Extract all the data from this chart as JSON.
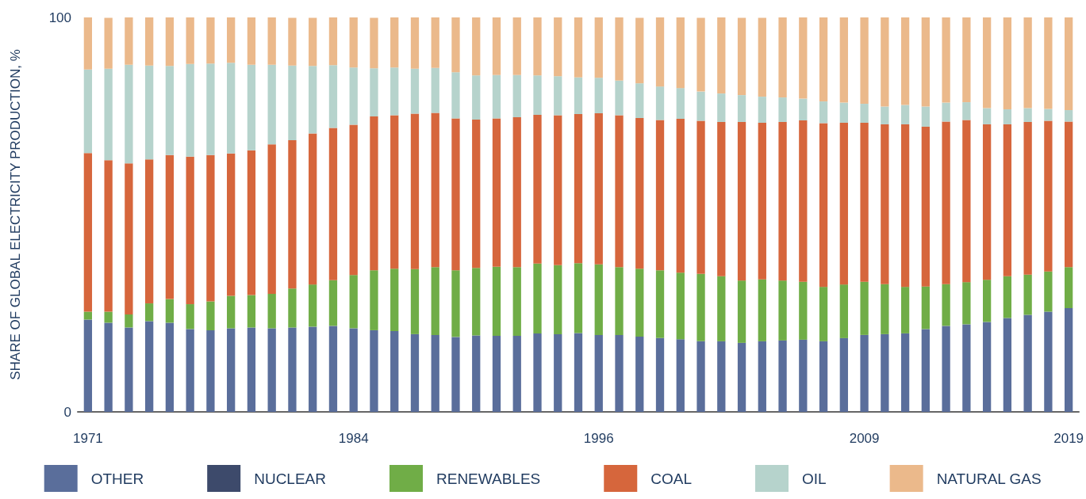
{
  "chart_data": {
    "type": "bar",
    "stacked": true,
    "ylabel": "SHARE OF GLOBAL ELECTRICITY PRODUCTION, %",
    "categories": [
      "1971",
      null,
      null,
      null,
      null,
      null,
      null,
      null,
      null,
      null,
      null,
      null,
      null,
      "1984",
      null,
      null,
      null,
      null,
      null,
      null,
      null,
      null,
      null,
      null,
      null,
      "1996",
      null,
      null,
      null,
      null,
      null,
      null,
      null,
      null,
      null,
      null,
      null,
      null,
      "2009",
      null,
      null,
      null,
      null,
      null,
      null,
      null,
      null,
      null,
      "2019"
    ],
    "ylim": [
      0,
      100
    ],
    "yticks": [
      0,
      100
    ],
    "grid": false,
    "legend": "bottom",
    "series": [
      {
        "name": "OTHER",
        "color": "#5a6e9b",
        "values": [
          23.4,
          22.6,
          21.4,
          23.0,
          22.6,
          21.0,
          20.7,
          21.2,
          21.4,
          21.2,
          21.4,
          21.6,
          21.8,
          21.2,
          20.7,
          20.5,
          19.7,
          19.5,
          19.0,
          19.4,
          19.3,
          19.3,
          19.9,
          19.7,
          20.0,
          19.5,
          19.5,
          19.1,
          18.7,
          18.4,
          17.9,
          17.9,
          17.5,
          17.9,
          18.1,
          18.3,
          17.9,
          18.7,
          19.5,
          19.7,
          19.9,
          21.0,
          21.8,
          22.2,
          22.8,
          23.8,
          24.6,
          25.4,
          26.3
        ]
      },
      {
        "name": "NUCLEAR",
        "color": "#3d4a6b",
        "values": [
          null,
          null,
          null,
          null,
          null,
          null,
          null,
          null,
          null,
          null,
          null,
          null,
          null,
          null,
          null,
          null,
          null,
          null,
          null,
          null,
          null,
          null,
          null,
          null,
          null,
          null,
          null,
          null,
          null,
          null,
          null,
          null,
          null,
          null,
          null,
          null,
          null,
          null,
          null,
          null,
          null,
          null,
          null,
          null,
          null,
          null,
          null,
          null,
          null
        ]
      },
      {
        "name": "RENEWABLES",
        "color": "#70ad47",
        "values": [
          2.0,
          2.8,
          3.3,
          4.5,
          6.0,
          6.3,
          7.3,
          8.2,
          8.2,
          8.7,
          9.9,
          10.7,
          11.6,
          13.5,
          15.2,
          15.8,
          16.5,
          17.2,
          16.9,
          17.1,
          17.5,
          17.4,
          17.7,
          17.5,
          17.7,
          17.9,
          17.2,
          17.2,
          17.2,
          16.9,
          17.1,
          16.5,
          15.8,
          15.7,
          15.2,
          14.7,
          13.8,
          13.6,
          13.5,
          12.7,
          11.8,
          10.8,
          10.6,
          10.7,
          10.7,
          10.6,
          10.2,
          10.2,
          10.4
        ]
      },
      {
        "name": "COAL",
        "color": "#d6663c",
        "values": [
          40.2,
          38.4,
          38.3,
          36.5,
          36.5,
          37.4,
          37.1,
          36.1,
          36.7,
          37.9,
          37.6,
          38.3,
          38.6,
          38.1,
          39.0,
          38.9,
          39.4,
          39.1,
          38.5,
          37.6,
          37.6,
          38.0,
          37.7,
          38.0,
          37.8,
          38.3,
          38.5,
          38.2,
          38.1,
          39.0,
          38.8,
          39.1,
          40.2,
          39.7,
          40.2,
          40.9,
          41.5,
          41.0,
          40.3,
          40.5,
          41.2,
          40.5,
          41.2,
          41.1,
          39.4,
          38.5,
          38.7,
          38.2,
          36.9
        ]
      },
      {
        "name": "OIL",
        "color": "#b6d3cc",
        "values": [
          21.2,
          23.2,
          25.0,
          23.8,
          22.6,
          23.5,
          23.2,
          23.0,
          21.7,
          20.2,
          18.9,
          17.1,
          15.9,
          14.5,
          12.2,
          12.1,
          11.4,
          11.4,
          11.7,
          11.2,
          11.0,
          10.7,
          10.0,
          9.9,
          9.3,
          9.0,
          8.8,
          8.8,
          8.5,
          7.8,
          7.4,
          7.2,
          6.8,
          6.6,
          6.2,
          5.5,
          5.5,
          5.1,
          4.8,
          4.5,
          4.9,
          5.1,
          4.8,
          4.5,
          4.1,
          3.8,
          3.5,
          3.0,
          2.9
        ]
      },
      {
        "name": "NATURAL GAS",
        "color": "#ebb98b",
        "values": [
          13.2,
          12.9,
          12.0,
          12.2,
          12.3,
          11.8,
          11.7,
          11.5,
          12.0,
          12.0,
          12.1,
          12.2,
          12.1,
          12.7,
          12.8,
          12.7,
          13.0,
          12.8,
          13.9,
          14.7,
          14.6,
          14.6,
          14.7,
          14.9,
          15.2,
          15.3,
          16.0,
          16.6,
          17.5,
          17.9,
          18.7,
          19.3,
          19.6,
          20.0,
          20.3,
          20.6,
          21.3,
          21.6,
          21.9,
          22.6,
          22.2,
          22.6,
          21.6,
          21.5,
          23.0,
          23.3,
          23.0,
          23.2,
          23.5
        ]
      }
    ]
  }
}
